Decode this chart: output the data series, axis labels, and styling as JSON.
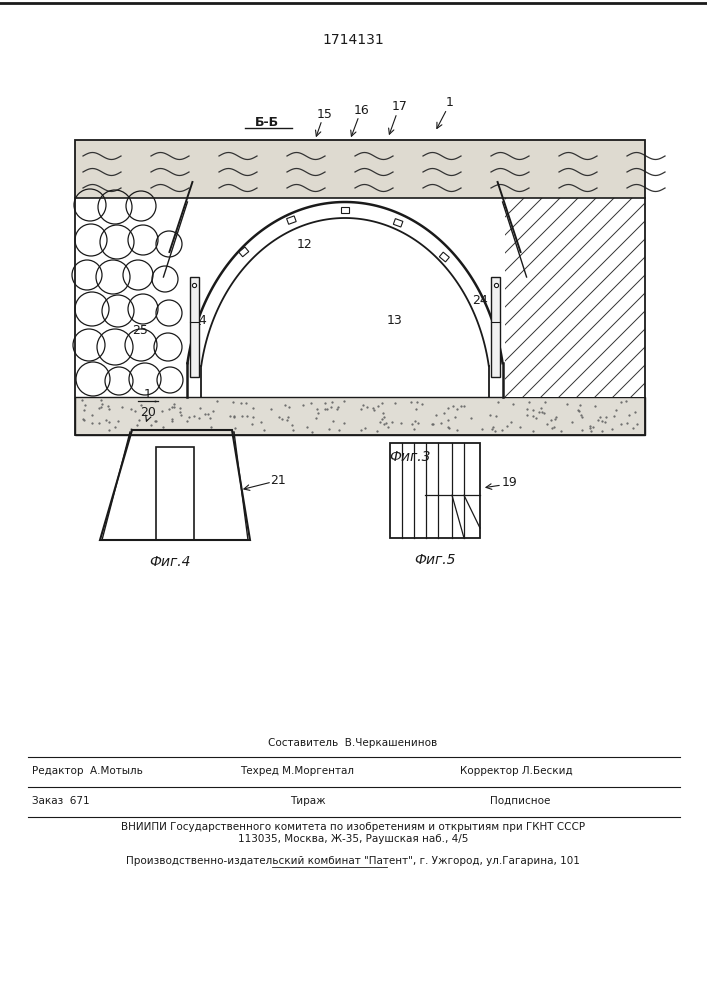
{
  "patent_number": "1714131",
  "fig3_label": "Фиг.3",
  "fig4_label": "Фиг.4",
  "fig5_label": "Фиг.5",
  "section_label": "Б-Б",
  "line_color": "#1a1a1a"
}
